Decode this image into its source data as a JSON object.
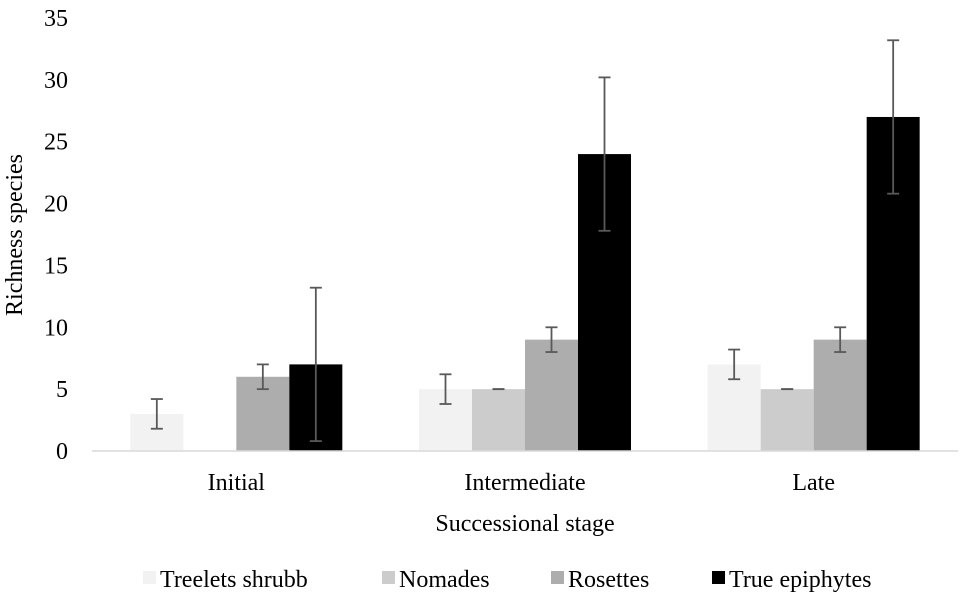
{
  "chart_data": {
    "type": "bar",
    "xlabel": "Successional stage",
    "ylabel": "Richness species",
    "ylim": [
      0,
      35
    ],
    "yticks": [
      0,
      5,
      10,
      15,
      20,
      25,
      30,
      35
    ],
    "categories": [
      "Initial",
      "Intermediate",
      "Late"
    ],
    "series": [
      {
        "name": "Treelets shrubb",
        "color": "#f2f2f2",
        "values": [
          3,
          5,
          7
        ],
        "error": [
          1.2,
          1.2,
          1.2
        ]
      },
      {
        "name": "Nomades",
        "color": "#cccccc",
        "values": [
          0,
          5,
          5
        ],
        "error": [
          0,
          0,
          0
        ]
      },
      {
        "name": "Rosettes",
        "color": "#adadad",
        "values": [
          6,
          9,
          9
        ],
        "error": [
          1,
          1,
          1
        ]
      },
      {
        "name": "True epiphytes",
        "color": "#000000",
        "values": [
          7,
          24,
          27
        ],
        "error": [
          6.2,
          6.2,
          6.2
        ]
      }
    ],
    "error_bar_color": "#595959",
    "grid": false,
    "legend_position": "bottom"
  }
}
